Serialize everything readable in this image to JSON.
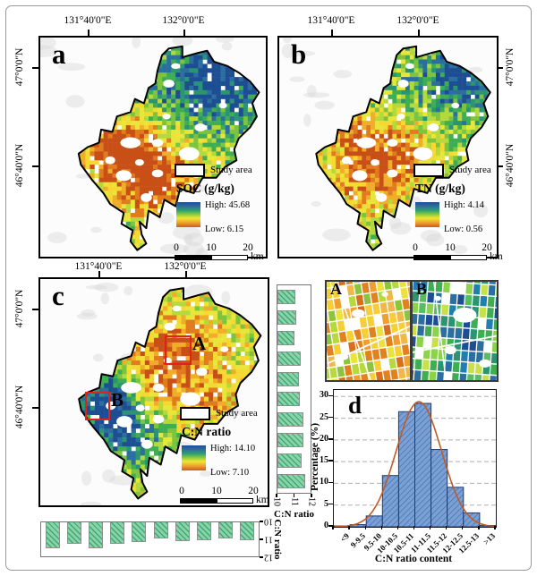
{
  "panels": {
    "a": {
      "label": "a",
      "x_ticks": [
        "131°40'0\"E",
        "132°0'0\"E"
      ],
      "y_ticks": [
        "47°0'0\"N",
        "46°40'0\"N"
      ],
      "legend": {
        "study_area": "Study area",
        "title": "SOC (g/kg)",
        "high": "High: 45.68",
        "low": "Low: 6.15"
      }
    },
    "b": {
      "label": "b",
      "x_ticks": [
        "131°40'0\"E",
        "132°0'0\"E"
      ],
      "y_ticks": [
        "47°0'0\"N",
        "46°40'0\"N"
      ],
      "legend": {
        "study_area": "Study area",
        "title": "TN (g/kg)",
        "high": "High: 4.14",
        "low": "Low: 0.56"
      }
    },
    "c": {
      "label": "c",
      "x_ticks": [
        "131°40'0\"E",
        "132°0'0\"E"
      ],
      "y_ticks": [
        "47°0'0\"N",
        "46°40'0\"N"
      ],
      "legend": {
        "study_area": "Study area",
        "title": "C:N ratio",
        "high": "High: 14.10",
        "low": "Low: 7.10"
      },
      "boxes": [
        {
          "label": "A"
        },
        {
          "label": "B"
        }
      ]
    }
  },
  "scalebar": {
    "ticks": [
      "0",
      "10",
      "20"
    ],
    "unit": "km"
  },
  "insets": [
    {
      "label": "A"
    },
    {
      "label": "B"
    }
  ],
  "chart_data": [
    {
      "id": "histogram-d",
      "type": "bar",
      "panel_label": "d",
      "categories": [
        "<9",
        "9-9.5",
        "9.5-10",
        "10-10.5",
        "10.5-11",
        "11-11.5",
        "11.5-12",
        "12-12.5",
        "12.5-13",
        ">13"
      ],
      "values": [
        0.2,
        0.5,
        2.5,
        11.8,
        26.5,
        28.4,
        17.8,
        9.1,
        3.2,
        0.3
      ],
      "xlabel": "C:N ratio content",
      "ylabel": "Percentage (%)",
      "ylim": [
        0,
        31.5
      ],
      "yticks": [
        0,
        5,
        10,
        15,
        20,
        25,
        30
      ],
      "grid": "dashed-horizontal",
      "legend_position": "none",
      "fit_curve": {
        "type": "gaussian",
        "peak": 28.8,
        "mean_bin": 4.75,
        "sigma_bins": 1.4
      }
    },
    {
      "id": "marginal-right",
      "type": "bar",
      "orientation": "horizontal-bars-by-latitude",
      "axis_label": "C:N ratio",
      "axis_ticks": [
        "10",
        "11",
        "12"
      ],
      "axis_range": [
        10,
        12
      ],
      "values": [
        11.08,
        11.15,
        11.0,
        11.38,
        11.3,
        11.35,
        11.55,
        11.55,
        11.45,
        11.7
      ]
    },
    {
      "id": "marginal-bottom",
      "type": "bar",
      "orientation": "downward-bars-by-longitude",
      "axis_label": "C:N ratio",
      "axis_ticks": [
        "10",
        "11",
        "12"
      ],
      "axis_range": [
        10,
        12
      ],
      "values": [
        11.55,
        11.25,
        11.55,
        11.25,
        11.15,
        10.95,
        11.1,
        11.05,
        10.95,
        11.05
      ]
    }
  ],
  "colors": {
    "map_ramp_high": "#1d4e94",
    "map_ramp_low": "#d4581a",
    "red_box": "#e02318",
    "hatch_green": "#84d6a6",
    "hist_bar_fill": "#7aa0d6",
    "hist_bar_edge": "#1c3d6e",
    "curve": "#bf5b28",
    "study_outline": "#000000"
  }
}
